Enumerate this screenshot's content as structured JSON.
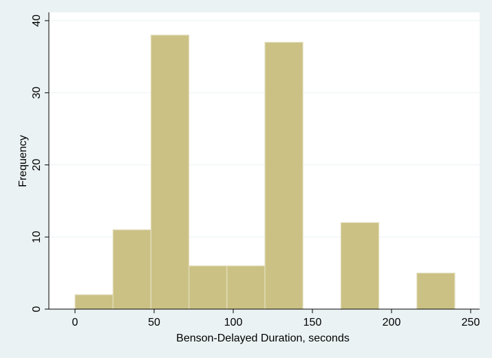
{
  "chart_data": {
    "type": "bar",
    "subtype": "histogram",
    "title": "",
    "xlabel": "Benson-Delayed Duration, seconds",
    "ylabel": "Frequency",
    "xlim": [
      -20,
      250
    ],
    "ylim": [
      0,
      40
    ],
    "xticks": [
      0,
      50,
      100,
      150,
      200,
      250
    ],
    "yticks": [
      0,
      10,
      20,
      30,
      40
    ],
    "grid": true,
    "legend": "none",
    "bins": [
      {
        "start": 0,
        "end": 24,
        "count": 2
      },
      {
        "start": 24,
        "end": 48,
        "count": 11
      },
      {
        "start": 48,
        "end": 72,
        "count": 38
      },
      {
        "start": 72,
        "end": 96,
        "count": 6
      },
      {
        "start": 96,
        "end": 120,
        "count": 6
      },
      {
        "start": 120,
        "end": 144,
        "count": 37
      },
      {
        "start": 144,
        "end": 168,
        "count": 0
      },
      {
        "start": 168,
        "end": 192,
        "count": 12
      },
      {
        "start": 192,
        "end": 216,
        "count": 0
      },
      {
        "start": 216,
        "end": 240,
        "count": 5
      }
    ],
    "colors": {
      "background": "#eaf2f3",
      "plot_background": "#ffffff",
      "bar_fill": "#cbc184",
      "bar_edge": "#e4dfc0",
      "grid": "#eaf2f3",
      "axis": "#000000"
    }
  }
}
